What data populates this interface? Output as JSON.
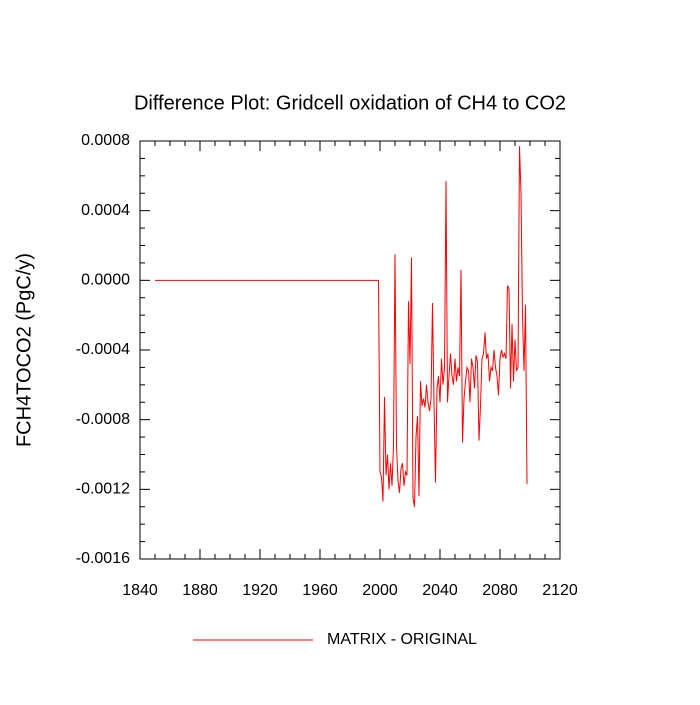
{
  "chart_data": {
    "type": "line",
    "title": "Difference Plot: Gridcell oxidation of CH4 to CO2",
    "y_label": "FCH4TOCO2  (PgC/y)",
    "x": [
      1850,
      1999,
      2000,
      2001,
      2002,
      2003,
      2004,
      2005,
      2006,
      2007,
      2008,
      2009,
      2010,
      2011,
      2012,
      2013,
      2014,
      2015,
      2016,
      2017,
      2018,
      2019,
      2020,
      2021,
      2022,
      2023,
      2024,
      2025,
      2026,
      2027,
      2028,
      2029,
      2030,
      2031,
      2032,
      2033,
      2034,
      2035,
      2036,
      2037,
      2038,
      2039,
      2040,
      2041,
      2042,
      2043,
      2044,
      2045,
      2046,
      2047,
      2048,
      2049,
      2050,
      2051,
      2052,
      2053,
      2054,
      2055,
      2056,
      2057,
      2058,
      2059,
      2060,
      2061,
      2062,
      2063,
      2064,
      2065,
      2066,
      2067,
      2068,
      2069,
      2070,
      2071,
      2072,
      2073,
      2074,
      2075,
      2076,
      2077,
      2078,
      2079,
      2080,
      2081,
      2082,
      2083,
      2084,
      2085,
      2086,
      2087,
      2088,
      2089,
      2090,
      2091,
      2092,
      2093,
      2094,
      2095,
      2096,
      2097,
      2098
    ],
    "series": [
      {
        "name": "MATRIX - ORIGINAL",
        "color": "#ff0000",
        "values": [
          0,
          0,
          -0.0011,
          -0.00113,
          -0.00127,
          -0.00067,
          -0.00112,
          -0.001,
          -0.0012,
          -0.00105,
          -0.00118,
          -0.00095,
          0.00015,
          -0.00095,
          -0.00115,
          -0.00122,
          -0.00108,
          -0.00105,
          -0.00118,
          -0.0011,
          -0.00112,
          -0.00012,
          -0.00048,
          0.00013,
          -0.00125,
          -0.0013,
          -0.0009,
          -0.00078,
          -0.00124,
          -0.00058,
          -0.00072,
          -0.00068,
          -0.00073,
          -0.0006,
          -0.0007,
          -0.00075,
          -0.00068,
          -0.00013,
          -0.0007,
          -0.00116,
          -0.00062,
          -0.00055,
          -0.0007,
          -0.00045,
          -0.0006,
          -0.0005,
          0.00057,
          -0.0007,
          -0.00055,
          -0.00042,
          -0.00055,
          -0.0006,
          -0.00045,
          -0.00058,
          -0.0005,
          -0.00055,
          6e-05,
          -0.00093,
          -0.00068,
          -0.00058,
          -0.0005,
          -0.00052,
          -0.0007,
          -0.00045,
          -0.0005,
          -0.00062,
          -0.00043,
          -0.00047,
          -0.00092,
          -0.00072,
          -0.00045,
          -0.00042,
          -0.0003,
          -0.00045,
          -0.00042,
          -0.00058,
          -0.0005,
          -0.00052,
          -0.0004,
          -0.0005,
          -0.00055,
          -0.00066,
          -0.00045,
          -0.0004,
          -0.00044,
          -0.00042,
          -0.00045,
          -3e-05,
          -5e-05,
          -0.00062,
          -0.00025,
          -0.00058,
          -0.00034,
          -0.00052,
          -0.0005,
          0.00077,
          0.0005,
          -0.0002,
          -0.00052,
          -0.00014,
          -0.00117
        ]
      }
    ],
    "xlim": [
      1840,
      2120
    ],
    "xticks": [
      1840,
      1880,
      1920,
      1960,
      2000,
      2040,
      2080,
      2120
    ],
    "ylim": [
      -0.0016,
      0.0008
    ],
    "yticks": [
      -0.0016,
      -0.0012,
      -0.0008,
      -0.0004,
      {
        "value": 0,
        "label": "0.0000"
      },
      0.0004,
      0.0008
    ],
    "grid": false
  }
}
